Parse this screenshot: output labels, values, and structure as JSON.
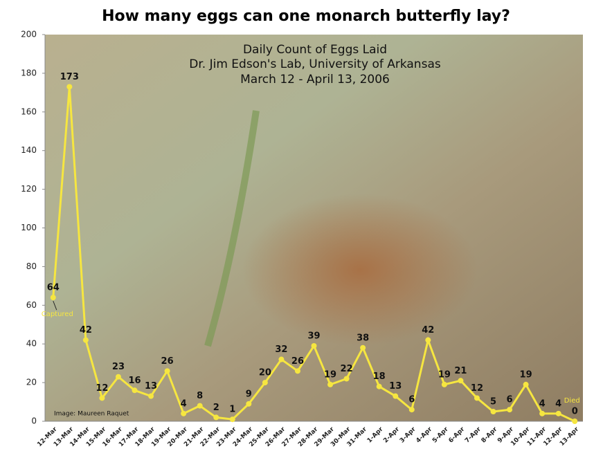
{
  "chart_data": {
    "type": "line",
    "title": "How many eggs can one monarch butterfly lay?",
    "subtitle": [
      "Daily Count of Eggs Laid",
      "Dr. Jim Edson's Lab, University of Arkansas",
      "March 12 - April 13, 2006"
    ],
    "categories": [
      "12-Mar",
      "13-Mar",
      "14-Mar",
      "15-Mar",
      "16-Mar",
      "17-Mar",
      "18-Mar",
      "19-Mar",
      "20-Mar",
      "21-Mar",
      "22-Mar",
      "23-Mar",
      "24-Mar",
      "25-Mar",
      "26-Mar",
      "27-Mar",
      "28-Mar",
      "29-Mar",
      "30-Mar",
      "31-Mar",
      "1-Apr",
      "2-Apr",
      "3-Apr",
      "4-Apr",
      "5-Apr",
      "6-Apr",
      "7-Apr",
      "8-Apr",
      "9-Apr",
      "10-Apr",
      "11-Apr",
      "12-Apr",
      "13-Apr"
    ],
    "values": [
      64,
      173,
      42,
      12,
      23,
      16,
      13,
      26,
      4,
      8,
      2,
      1,
      9,
      20,
      32,
      26,
      39,
      19,
      22,
      38,
      18,
      13,
      6,
      42,
      19,
      21,
      12,
      5,
      6,
      19,
      4,
      4,
      0
    ],
    "color": "#f6e640",
    "ylim": [
      0,
      200
    ],
    "yticks": [
      0,
      20,
      40,
      60,
      80,
      100,
      120,
      140,
      160,
      180,
      200
    ],
    "grid": false,
    "annotations": [
      "Captured",
      "Died"
    ],
    "credit": "Image: Maureen Raquet"
  }
}
